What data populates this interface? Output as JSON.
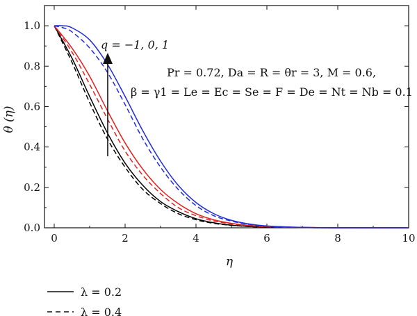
{
  "chart_data": {
    "type": "line",
    "xlabel": "η",
    "ylabel": "θ (η)",
    "xlim": [
      0,
      10
    ],
    "ylim": [
      0,
      1.1
    ],
    "xticks": [
      0,
      2,
      4,
      6,
      8,
      10
    ],
    "yticks": [
      0.0,
      0.2,
      0.4,
      0.6,
      0.8,
      1.0
    ],
    "xtick_labels": [
      "0",
      "2",
      "4",
      "6",
      "8",
      "10"
    ],
    "ytick_labels": [
      "0.0",
      "0.2",
      "0.4",
      "0.6",
      "0.8",
      "1.0"
    ],
    "grid": false,
    "annotations": {
      "arrow_label": "q = −1, 0, 1",
      "params_line1": "Pr = 0.72, Da = R = θr = 3, M = 0.6,",
      "params_line2": "β = γ1 = Le = Ec = Se = F = De = Nt = Nb = 0.1"
    },
    "legend": {
      "placement": "bottom-left",
      "entries": [
        {
          "label": "λ = 0.2",
          "style": "solid"
        },
        {
          "label": "λ = 0.4",
          "style": "dashed"
        }
      ]
    },
    "series": [
      {
        "q": "-1",
        "lambda": "0.2",
        "style": "solid",
        "color": "#000000",
        "x": [
          0,
          0.5,
          1,
          1.5,
          2,
          2.5,
          3,
          3.5,
          4,
          4.5,
          5,
          5.5,
          6,
          7,
          8,
          9,
          10
        ],
        "y": [
          1.0,
          0.84,
          0.65,
          0.47,
          0.32,
          0.21,
          0.13,
          0.08,
          0.045,
          0.025,
          0.013,
          0.007,
          0.004,
          0.001,
          0.0,
          0.0,
          0.0
        ]
      },
      {
        "q": "-1",
        "lambda": "0.4",
        "style": "dashed",
        "color": "#000000",
        "x": [
          0,
          0.5,
          1,
          1.5,
          2,
          2.5,
          3,
          3.5,
          4,
          4.5,
          5,
          5.5,
          6,
          7,
          8,
          9,
          10
        ],
        "y": [
          1.0,
          0.82,
          0.62,
          0.44,
          0.3,
          0.19,
          0.12,
          0.07,
          0.04,
          0.022,
          0.012,
          0.006,
          0.003,
          0.001,
          0.0,
          0.0,
          0.0
        ]
      },
      {
        "q": "0",
        "lambda": "0.2",
        "style": "solid",
        "color": "#e0211f",
        "x": [
          0,
          0.5,
          1,
          1.5,
          2,
          2.5,
          3,
          3.5,
          4,
          4.5,
          5,
          5.5,
          6,
          7,
          8,
          9,
          10
        ],
        "y": [
          1.0,
          0.89,
          0.75,
          0.58,
          0.42,
          0.29,
          0.19,
          0.12,
          0.07,
          0.04,
          0.022,
          0.012,
          0.006,
          0.002,
          0.0,
          0.0,
          0.0
        ]
      },
      {
        "q": "0",
        "lambda": "0.4",
        "style": "dashed",
        "color": "#e0211f",
        "x": [
          0,
          0.5,
          1,
          1.5,
          2,
          2.5,
          3,
          3.5,
          4,
          4.5,
          5,
          5.5,
          6,
          7,
          8,
          9,
          10
        ],
        "y": [
          1.0,
          0.87,
          0.71,
          0.54,
          0.38,
          0.26,
          0.17,
          0.1,
          0.06,
          0.034,
          0.019,
          0.01,
          0.005,
          0.002,
          0.0,
          0.0,
          0.0
        ]
      },
      {
        "q": "1",
        "lambda": "0.2",
        "style": "solid",
        "color": "#1f2bd6",
        "x": [
          0,
          0.25,
          0.5,
          1,
          1.5,
          2,
          2.5,
          3,
          3.5,
          4,
          4.5,
          5,
          5.5,
          6,
          7,
          8,
          9,
          10
        ],
        "y": [
          1.0,
          1.0,
          0.99,
          0.93,
          0.81,
          0.65,
          0.48,
          0.33,
          0.21,
          0.125,
          0.07,
          0.037,
          0.019,
          0.009,
          0.002,
          0.0,
          0.0,
          0.0
        ]
      },
      {
        "q": "1",
        "lambda": "0.4",
        "style": "dashed",
        "color": "#1f2bd6",
        "x": [
          0,
          0.25,
          0.5,
          1,
          1.5,
          2,
          2.5,
          3,
          3.5,
          4,
          4.5,
          5,
          5.5,
          6,
          7,
          8,
          9,
          10
        ],
        "y": [
          1.0,
          0.99,
          0.97,
          0.89,
          0.77,
          0.61,
          0.44,
          0.3,
          0.19,
          0.11,
          0.06,
          0.033,
          0.017,
          0.008,
          0.002,
          0.0,
          0.0,
          0.0
        ]
      }
    ]
  }
}
